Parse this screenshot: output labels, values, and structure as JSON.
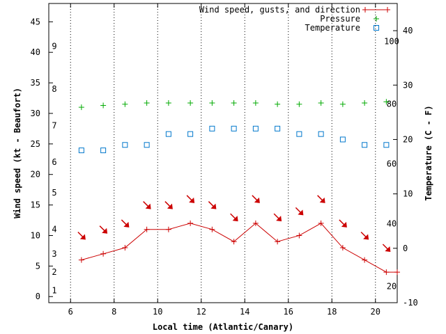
{
  "chart_data": {
    "type": "line",
    "xlabel": "Local time (Atlantic/Canary)",
    "ylabel": "Wind speed (kt - Beaufort)",
    "y2label": "Temperature (C - F)",
    "xlim": [
      5,
      21
    ],
    "ylim": [
      -1,
      48
    ],
    "y2lim": [
      -10,
      45
    ],
    "x_ticks": [
      6,
      8,
      10,
      12,
      14,
      16,
      18,
      20
    ],
    "y_ticks": [
      0,
      5,
      10,
      15,
      20,
      25,
      30,
      35,
      40,
      45
    ],
    "y2_ticks": [
      -10,
      0,
      10,
      20,
      30,
      40
    ],
    "beaufort_labels": [
      {
        "label": "1",
        "y": 1
      },
      {
        "label": "2",
        "y": 4
      },
      {
        "label": "3",
        "y": 7
      },
      {
        "label": "4",
        "y": 11
      },
      {
        "label": "5",
        "y": 17
      },
      {
        "label": "6",
        "y": 22
      },
      {
        "label": "7",
        "y": 28
      },
      {
        "label": "8",
        "y": 34
      },
      {
        "label": "9",
        "y": 41
      }
    ],
    "fahrenheit_labels": [
      {
        "label": "20",
        "y2": -7
      },
      {
        "label": "40",
        "y2": 4.5
      },
      {
        "label": "60",
        "y2": 15.5
      },
      {
        "label": "80",
        "y2": 26.5
      },
      {
        "label": "100",
        "y2": 38
      }
    ],
    "legend_position": "top-right",
    "series": [
      {
        "name": "Wind speed, gusts, and direction",
        "color": "#cc0000",
        "x": [
          6.5,
          7.5,
          8.5,
          9.5,
          10.5,
          11.5,
          12.5,
          13.5,
          14.5,
          15.5,
          16.5,
          17.5,
          18.5,
          19.5,
          20.5,
          21
        ],
        "y": [
          6,
          7,
          8,
          11,
          11,
          12,
          11,
          9,
          12,
          9,
          10,
          12,
          8,
          6,
          4,
          4
        ]
      },
      {
        "name": "Pressure",
        "color": "#00aa00",
        "x": [
          6.5,
          7.5,
          8.5,
          9.5,
          10.5,
          11.5,
          12.5,
          13.5,
          14.5,
          15.5,
          16.5,
          17.5,
          18.5,
          19.5,
          20.5
        ],
        "y": [
          31,
          31.3,
          31.5,
          31.7,
          31.7,
          31.7,
          31.7,
          31.7,
          31.7,
          31.5,
          31.5,
          31.7,
          31.5,
          31.7,
          31.9
        ]
      },
      {
        "name": "Temperature",
        "color": "#0077cc",
        "axis": "y2",
        "x": [
          6.5,
          7.5,
          8.5,
          9.5,
          10.5,
          11.5,
          12.5,
          13.5,
          14.5,
          15.5,
          16.5,
          17.5,
          18.5,
          19.5,
          20.5
        ],
        "y": [
          18,
          18,
          19,
          19,
          21,
          21,
          22,
          22,
          22,
          22,
          21,
          21,
          20,
          19,
          19
        ]
      }
    ],
    "wind_arrows": {
      "color": "#cc0000",
      "x": [
        6.5,
        7.5,
        8.5,
        9.5,
        10.5,
        11.5,
        12.5,
        13.5,
        14.5,
        15.5,
        16.5,
        17.5,
        18.5,
        19.5,
        20.5
      ],
      "y": [
        10,
        11,
        12,
        15,
        15,
        16,
        15,
        13,
        16,
        13,
        14,
        16,
        12,
        10,
        8
      ]
    }
  }
}
